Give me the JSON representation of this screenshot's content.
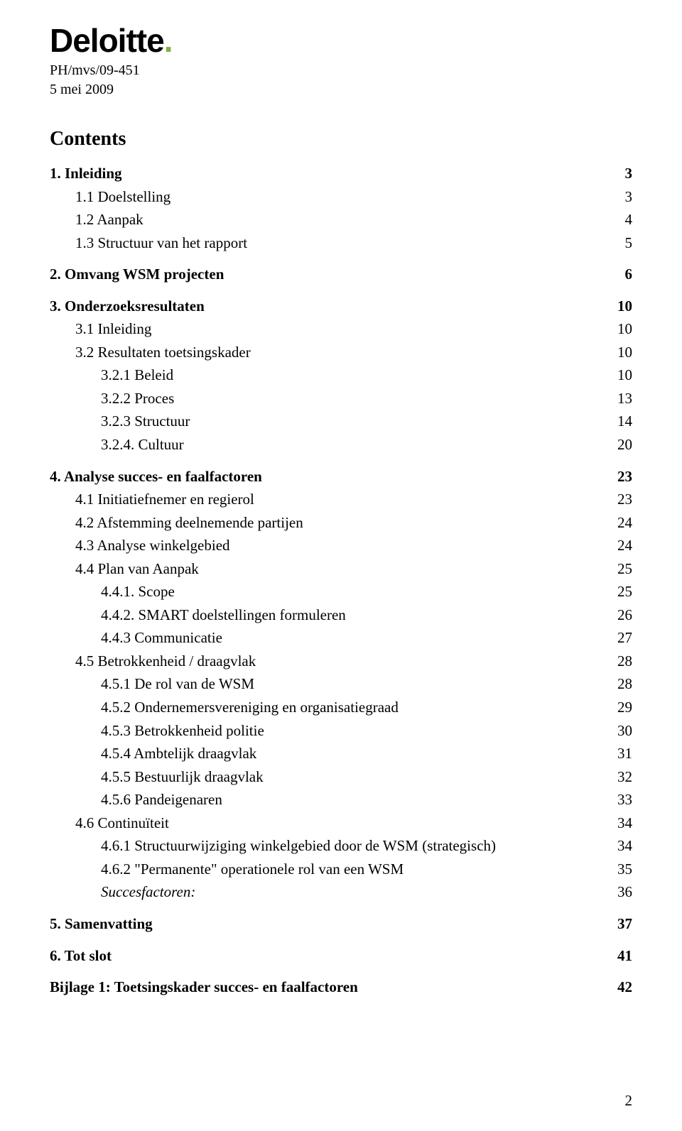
{
  "brand": {
    "name": "Deloitte",
    "dot_color": "#7cb342",
    "text_color": "#000000"
  },
  "header": {
    "ref": "PH/mvs/09-451",
    "date": "5 mei 2009"
  },
  "contents_title": "Contents",
  "page_number": "2",
  "toc": [
    {
      "label": "1. Inleiding",
      "page": "3",
      "level": 0,
      "bold": true,
      "gap": false
    },
    {
      "label": "1.1 Doelstelling",
      "page": "3",
      "level": 1,
      "bold": false,
      "gap": false
    },
    {
      "label": "1.2 Aanpak",
      "page": "4",
      "level": 1,
      "bold": false,
      "gap": false
    },
    {
      "label": "1.3 Structuur van het rapport",
      "page": "5",
      "level": 1,
      "bold": false,
      "gap": false
    },
    {
      "label": "2. Omvang WSM projecten",
      "page": "6",
      "level": 0,
      "bold": true,
      "gap": true
    },
    {
      "label": "3. Onderzoeksresultaten",
      "page": "10",
      "level": 0,
      "bold": true,
      "gap": true
    },
    {
      "label": "3.1 Inleiding",
      "page": "10",
      "level": 1,
      "bold": false,
      "gap": false
    },
    {
      "label": "3.2 Resultaten toetsingskader",
      "page": "10",
      "level": 1,
      "bold": false,
      "gap": false
    },
    {
      "label": "3.2.1 Beleid",
      "page": "10",
      "level": 2,
      "bold": false,
      "gap": false
    },
    {
      "label": "3.2.2 Proces",
      "page": "13",
      "level": 2,
      "bold": false,
      "gap": false
    },
    {
      "label": "3.2.3 Structuur",
      "page": "14",
      "level": 2,
      "bold": false,
      "gap": false
    },
    {
      "label": "3.2.4. Cultuur",
      "page": "20",
      "level": 2,
      "bold": false,
      "gap": false
    },
    {
      "label": "4. Analyse succes- en faalfactoren",
      "page": "23",
      "level": 0,
      "bold": true,
      "gap": true
    },
    {
      "label": "4.1 Initiatiefnemer en regierol",
      "page": "23",
      "level": 1,
      "bold": false,
      "gap": false
    },
    {
      "label": "4.2 Afstemming deelnemende partijen",
      "page": "24",
      "level": 1,
      "bold": false,
      "gap": false
    },
    {
      "label": "4.3 Analyse winkelgebied",
      "page": "24",
      "level": 1,
      "bold": false,
      "gap": false
    },
    {
      "label": "4.4 Plan van Aanpak",
      "page": "25",
      "level": 1,
      "bold": false,
      "gap": false
    },
    {
      "label": "4.4.1. Scope",
      "page": "25",
      "level": 2,
      "bold": false,
      "gap": false
    },
    {
      "label": "4.4.2. SMART doelstellingen formuleren",
      "page": "26",
      "level": 2,
      "bold": false,
      "gap": false
    },
    {
      "label": "4.4.3 Communicatie",
      "page": "27",
      "level": 2,
      "bold": false,
      "gap": false
    },
    {
      "label": "4.5 Betrokkenheid / draagvlak",
      "page": "28",
      "level": 1,
      "bold": false,
      "gap": false
    },
    {
      "label": "4.5.1 De rol van de WSM",
      "page": "28",
      "level": 2,
      "bold": false,
      "gap": false
    },
    {
      "label": "4.5.2 Ondernemersvereniging en organisatiegraad",
      "page": "29",
      "level": 2,
      "bold": false,
      "gap": false
    },
    {
      "label": "4.5.3 Betrokkenheid politie",
      "page": "30",
      "level": 2,
      "bold": false,
      "gap": false
    },
    {
      "label": "4.5.4 Ambtelijk draagvlak",
      "page": "31",
      "level": 2,
      "bold": false,
      "gap": false
    },
    {
      "label": "4.5.5 Bestuurlijk draagvlak",
      "page": "32",
      "level": 2,
      "bold": false,
      "gap": false
    },
    {
      "label": "4.5.6 Pandeigenaren",
      "page": "33",
      "level": 2,
      "bold": false,
      "gap": false
    },
    {
      "label": "4.6 Continuïteit",
      "page": "34",
      "level": 1,
      "bold": false,
      "gap": false
    },
    {
      "label": "4.6.1 Structuurwijziging winkelgebied door de WSM (strategisch)",
      "page": "34",
      "level": 2,
      "bold": false,
      "gap": false
    },
    {
      "label": "4.6.2 \"Permanente\" operationele rol van een WSM",
      "page": "35",
      "level": 2,
      "bold": false,
      "gap": false
    },
    {
      "label": "Succesfactoren:",
      "page": "36",
      "level": 2,
      "bold": false,
      "gap": false,
      "italic": true
    },
    {
      "label": "5. Samenvatting",
      "page": "37",
      "level": 0,
      "bold": true,
      "gap": true
    },
    {
      "label": "6. Tot slot",
      "page": "41",
      "level": 0,
      "bold": true,
      "gap": true
    },
    {
      "label": "Bijlage 1: Toetsingskader succes- en faalfactoren",
      "page": "42",
      "level": 0,
      "bold": true,
      "gap": true
    }
  ],
  "typography": {
    "brand_fontsize": 46,
    "ref_fontsize": 20,
    "contents_title_fontsize": 28,
    "toc_fontsize": 21,
    "line_height": 1.55,
    "background_color": "#ffffff",
    "text_color": "#000000"
  }
}
